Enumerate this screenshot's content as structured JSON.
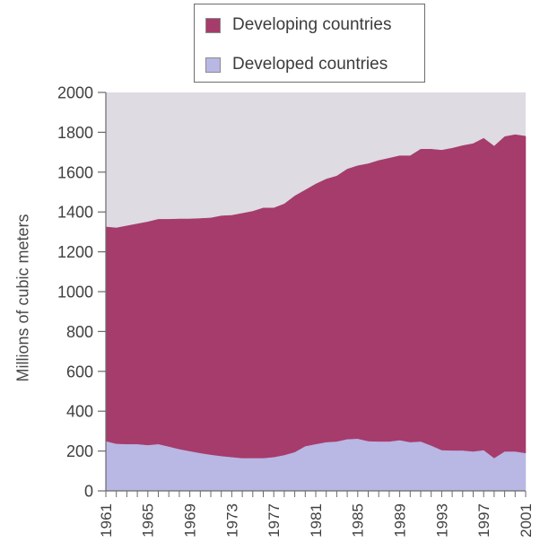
{
  "chart_data": {
    "type": "area",
    "stacked": true,
    "title": "",
    "xlabel": "",
    "ylabel": "Millions of cubic meters",
    "ylim": [
      0,
      2000
    ],
    "yticks": [
      0,
      200,
      400,
      600,
      800,
      1000,
      1200,
      1400,
      1600,
      1800,
      2000
    ],
    "xlim": [
      1961,
      2001
    ],
    "xticks": [
      1961,
      1965,
      1969,
      1973,
      1977,
      1981,
      1985,
      1989,
      1993,
      1997,
      2001
    ],
    "x": [
      1961,
      1962,
      1963,
      1964,
      1965,
      1966,
      1967,
      1968,
      1969,
      1970,
      1971,
      1972,
      1973,
      1974,
      1975,
      1976,
      1977,
      1978,
      1979,
      1980,
      1981,
      1982,
      1983,
      1984,
      1985,
      1986,
      1987,
      1988,
      1989,
      1990,
      1991,
      1992,
      1993,
      1994,
      1995,
      1996,
      1997,
      1998,
      1999,
      2000,
      2001
    ],
    "series": [
      {
        "name": "Developed countries",
        "color": "#b9b7e4",
        "values": [
          250,
          237,
          235,
          235,
          230,
          235,
          223,
          210,
          200,
          190,
          182,
          175,
          170,
          165,
          165,
          165,
          170,
          180,
          195,
          225,
          235,
          245,
          248,
          260,
          262,
          250,
          248,
          248,
          255,
          245,
          248,
          228,
          205,
          203,
          203,
          198,
          205,
          165,
          198,
          198,
          190
        ]
      },
      {
        "name": "Developing countries",
        "color": "#a53c6b",
        "values": [
          1075,
          1083,
          1095,
          1105,
          1120,
          1128,
          1140,
          1155,
          1165,
          1177,
          1188,
          1205,
          1213,
          1228,
          1238,
          1255,
          1250,
          1260,
          1285,
          1285,
          1305,
          1320,
          1332,
          1355,
          1370,
          1392,
          1410,
          1422,
          1427,
          1437,
          1467,
          1487,
          1505,
          1517,
          1530,
          1545,
          1565,
          1565,
          1580,
          1590,
          1590
        ]
      }
    ],
    "background_color": "#dedbe2",
    "grid": false,
    "legend_position": "top"
  }
}
